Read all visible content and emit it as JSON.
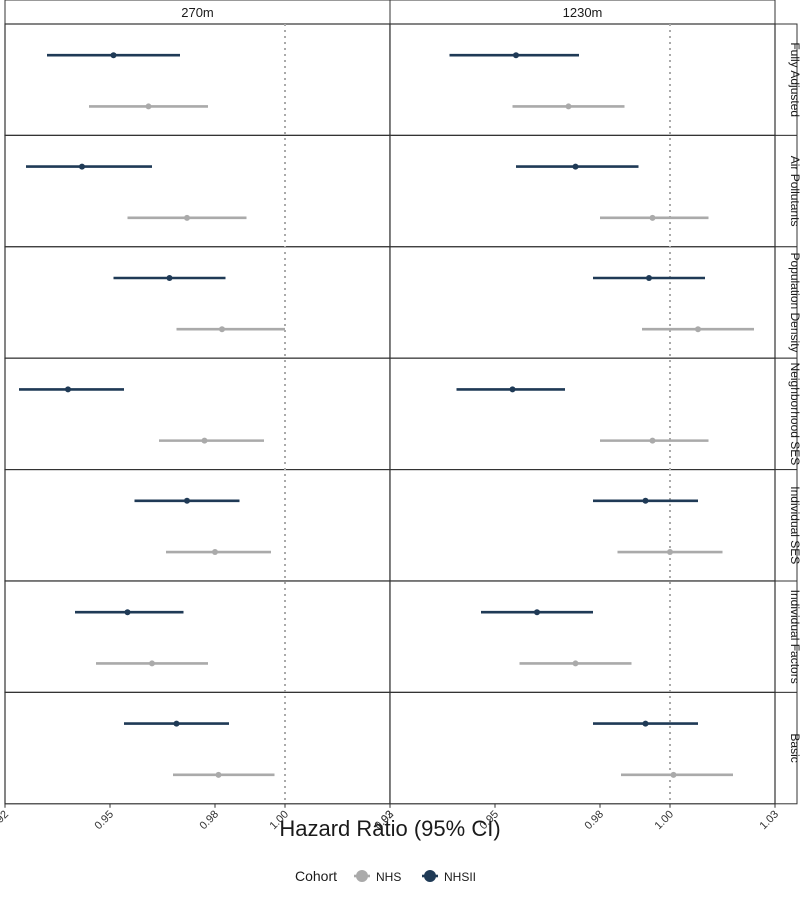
{
  "chart_data": {
    "type": "forest",
    "xlabel": "Hazard Ratio (95% CI)",
    "x_ticks": [
      "0.92",
      "0.95",
      "0.98",
      "1.00",
      "1.03"
    ],
    "xlim": [
      0.92,
      1.03
    ],
    "reference_line": 1.0,
    "columns": [
      "270m",
      "1230m"
    ],
    "rows": [
      "Fully Adjusted",
      "Air Pollutants",
      "Population Density",
      "Neighborhood SES",
      "Individual SES",
      "Individual Factors",
      "Basic"
    ],
    "legend": {
      "title": "Cohort",
      "position": "bottom",
      "items": [
        {
          "name": "NHS",
          "color": "#aaaaaa"
        },
        {
          "name": "NHSII",
          "color": "#1f3a56"
        }
      ]
    },
    "series": [
      {
        "name": "NHSII",
        "color": "#1f3a56",
        "data": {
          "270m": [
            {
              "row": "Fully Adjusted",
              "hr": 0.951,
              "lo": 0.932,
              "hi": 0.97
            },
            {
              "row": "Air Pollutants",
              "hr": 0.942,
              "lo": 0.926,
              "hi": 0.962
            },
            {
              "row": "Population Density",
              "hr": 0.967,
              "lo": 0.951,
              "hi": 0.983
            },
            {
              "row": "Neighborhood SES",
              "hr": 0.938,
              "lo": 0.924,
              "hi": 0.954
            },
            {
              "row": "Individual SES",
              "hr": 0.972,
              "lo": 0.957,
              "hi": 0.987
            },
            {
              "row": "Individual Factors",
              "hr": 0.955,
              "lo": 0.94,
              "hi": 0.971
            },
            {
              "row": "Basic",
              "hr": 0.969,
              "lo": 0.954,
              "hi": 0.984
            }
          ],
          "1230m": [
            {
              "row": "Fully Adjusted",
              "hr": 0.956,
              "lo": 0.937,
              "hi": 0.974
            },
            {
              "row": "Air Pollutants",
              "hr": 0.973,
              "lo": 0.956,
              "hi": 0.991
            },
            {
              "row": "Population Density",
              "hr": 0.994,
              "lo": 0.978,
              "hi": 1.01
            },
            {
              "row": "Neighborhood SES",
              "hr": 0.955,
              "lo": 0.939,
              "hi": 0.97
            },
            {
              "row": "Individual SES",
              "hr": 0.993,
              "lo": 0.978,
              "hi": 1.008
            },
            {
              "row": "Individual Factors",
              "hr": 0.962,
              "lo": 0.946,
              "hi": 0.978
            },
            {
              "row": "Basic",
              "hr": 0.993,
              "lo": 0.978,
              "hi": 1.008
            }
          ]
        }
      },
      {
        "name": "NHS",
        "color": "#aaaaaa",
        "data": {
          "270m": [
            {
              "row": "Fully Adjusted",
              "hr": 0.961,
              "lo": 0.944,
              "hi": 0.978
            },
            {
              "row": "Air Pollutants",
              "hr": 0.972,
              "lo": 0.955,
              "hi": 0.989
            },
            {
              "row": "Population Density",
              "hr": 0.982,
              "lo": 0.969,
              "hi": 1.0
            },
            {
              "row": "Neighborhood SES",
              "hr": 0.977,
              "lo": 0.964,
              "hi": 0.994
            },
            {
              "row": "Individual SES",
              "hr": 0.98,
              "lo": 0.966,
              "hi": 0.996
            },
            {
              "row": "Individual Factors",
              "hr": 0.962,
              "lo": 0.946,
              "hi": 0.978
            },
            {
              "row": "Basic",
              "hr": 0.981,
              "lo": 0.968,
              "hi": 0.997
            }
          ],
          "1230m": [
            {
              "row": "Fully Adjusted",
              "hr": 0.971,
              "lo": 0.955,
              "hi": 0.987
            },
            {
              "row": "Air Pollutants",
              "hr": 0.995,
              "lo": 0.98,
              "hi": 1.011
            },
            {
              "row": "Population Density",
              "hr": 1.008,
              "lo": 0.992,
              "hi": 1.024
            },
            {
              "row": "Neighborhood SES",
              "hr": 0.995,
              "lo": 0.98,
              "hi": 1.011
            },
            {
              "row": "Individual SES",
              "hr": 1.0,
              "lo": 0.985,
              "hi": 1.015
            },
            {
              "row": "Individual Factors",
              "hr": 0.973,
              "lo": 0.957,
              "hi": 0.989
            },
            {
              "row": "Basic",
              "hr": 1.001,
              "lo": 0.986,
              "hi": 1.018
            }
          ]
        }
      }
    ]
  }
}
